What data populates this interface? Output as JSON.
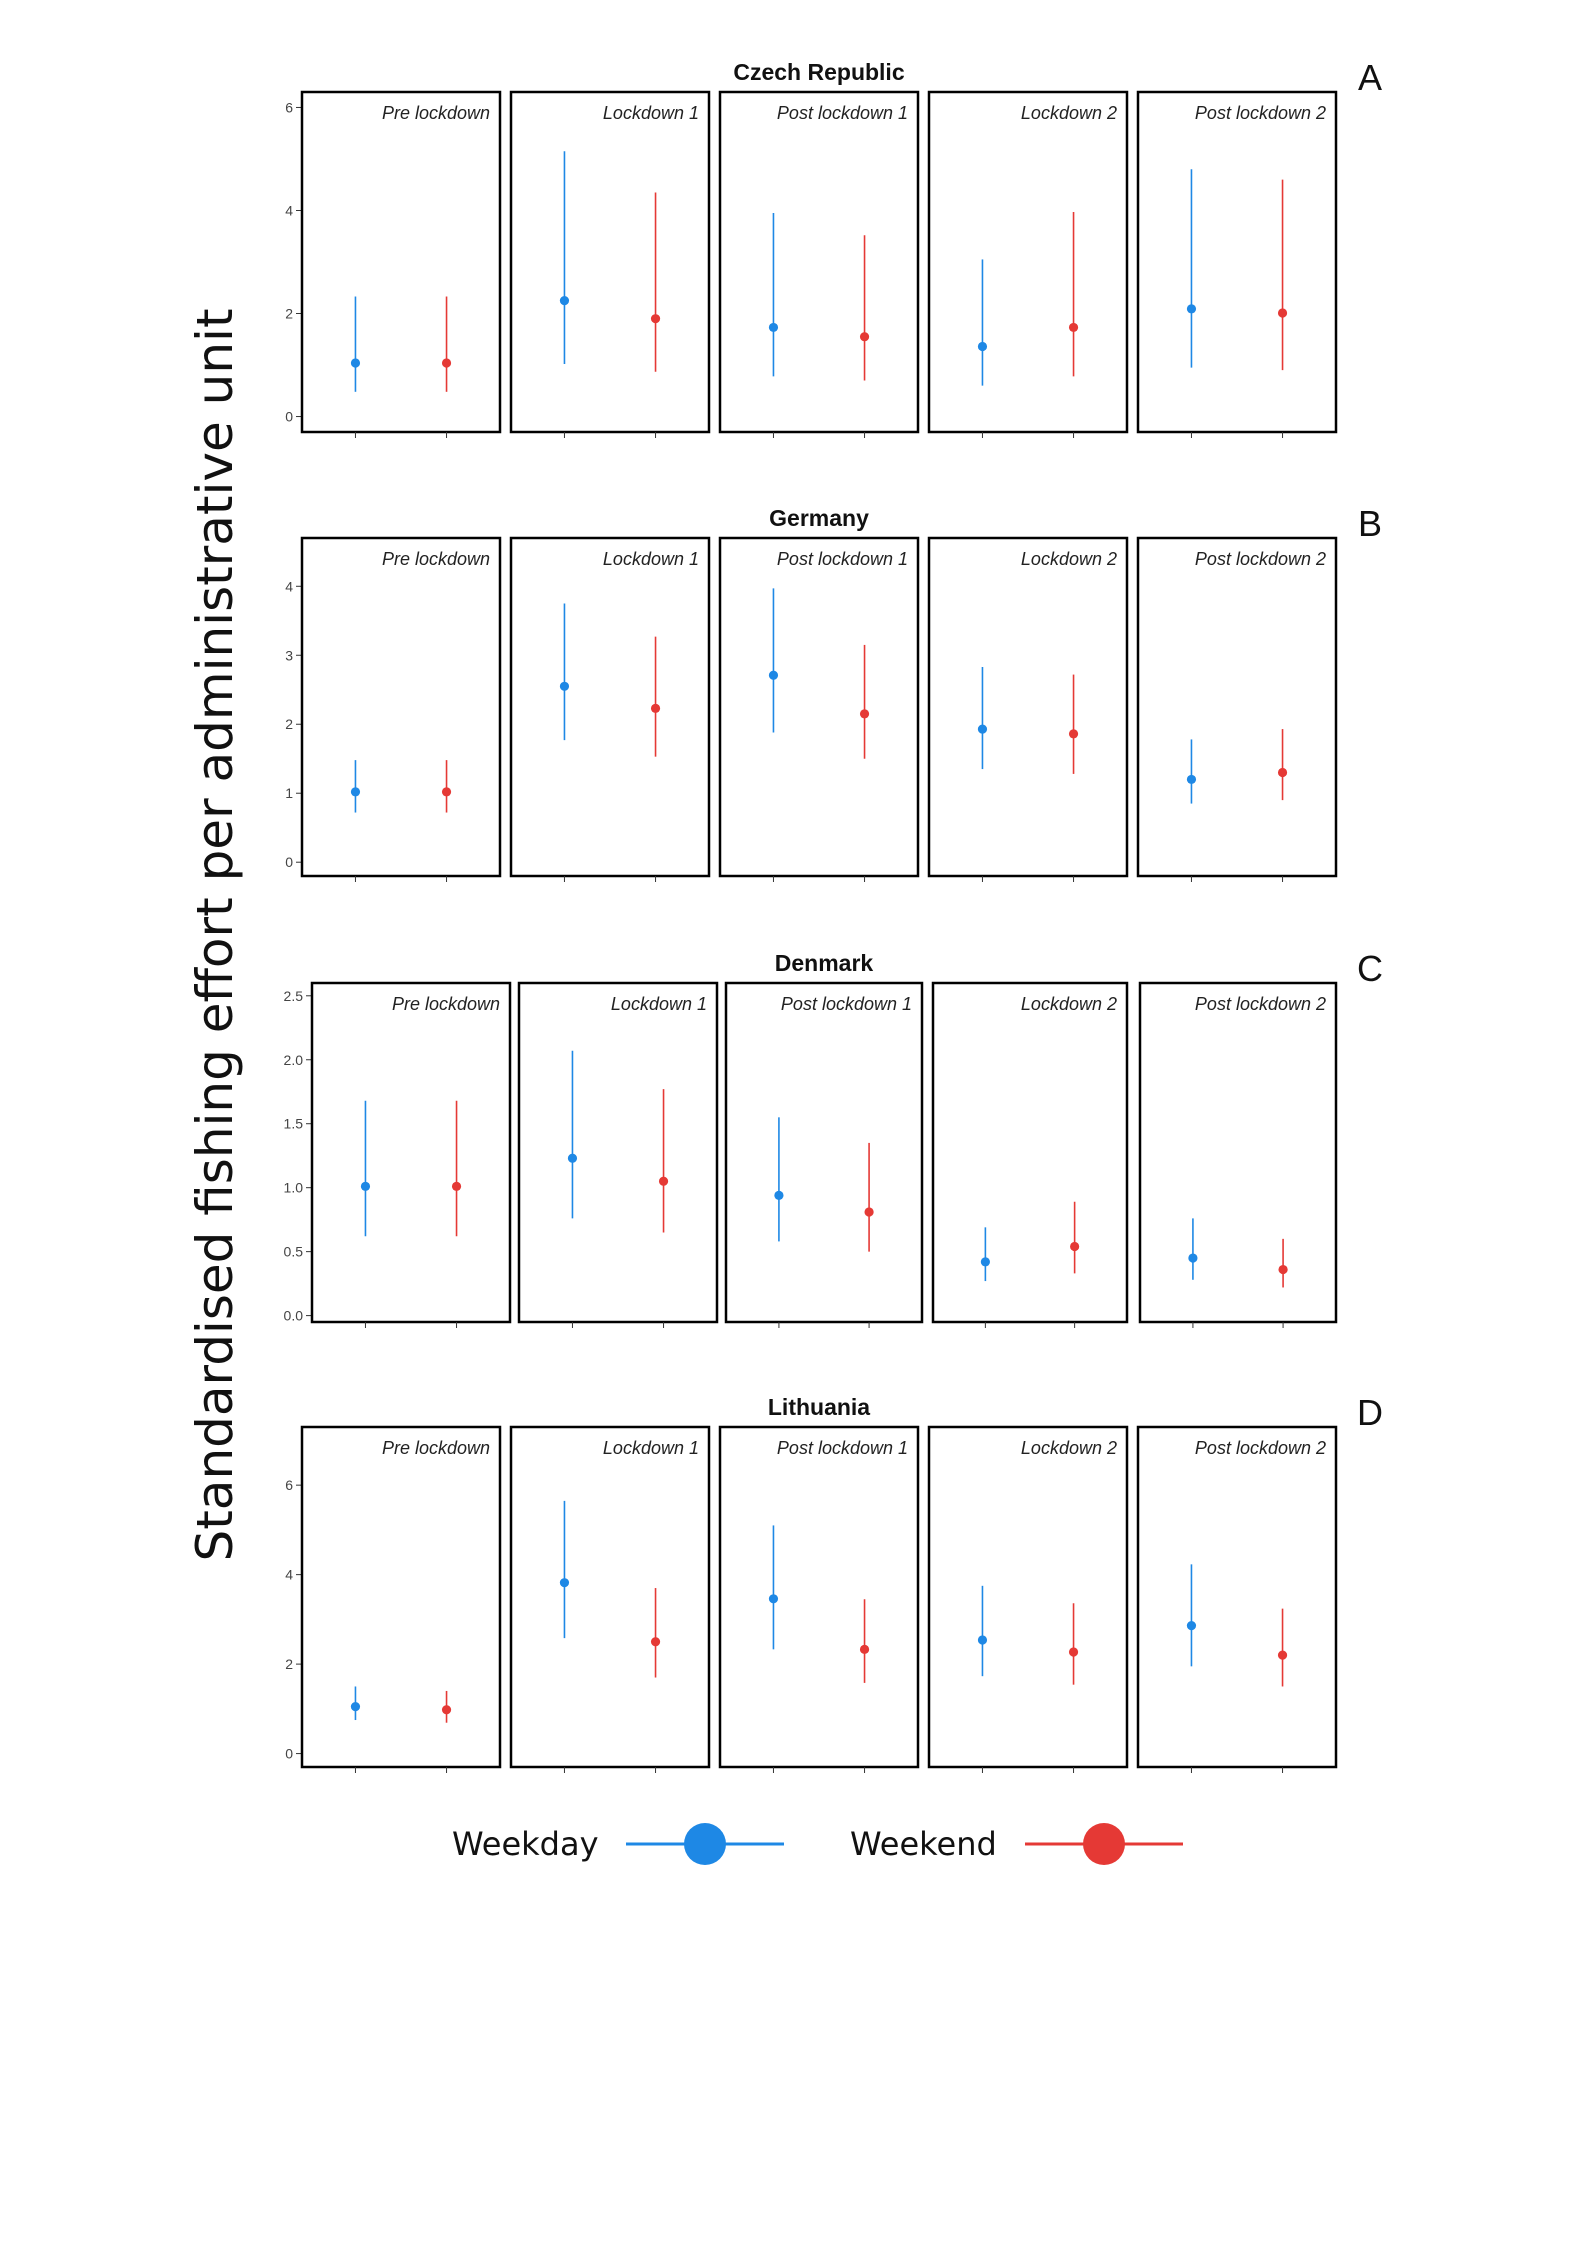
{
  "figure": {
    "ylabel": "Standardised fishing effort per administrative unit",
    "legend": [
      {
        "label": "Weekday",
        "color": "#1e88e5"
      },
      {
        "label": "Weekend",
        "color": "#e53935"
      }
    ]
  },
  "chart_data": [
    {
      "type": "errorbar",
      "title": "Czech Republic",
      "panel_label": "A",
      "facets": [
        "Pre lockdown",
        "Lockdown 1",
        "Post lockdown 1",
        "Lockdown 2",
        "Post lockdown 2"
      ],
      "ylim": [
        -0.3,
        6.3
      ],
      "yticks": [
        0,
        2,
        4,
        6
      ],
      "ytick_labels": [
        "0",
        "2",
        "4",
        "6"
      ],
      "series": [
        {
          "name": "Weekday",
          "color": "#1e88e5",
          "values": [
            1.04,
            2.25,
            1.73,
            1.36,
            2.09
          ],
          "lower": [
            0.48,
            1.02,
            0.78,
            0.6,
            0.95
          ],
          "upper": [
            2.33,
            5.15,
            3.95,
            3.05,
            4.8
          ]
        },
        {
          "name": "Weekend",
          "color": "#e53935",
          "values": [
            1.04,
            1.9,
            1.55,
            1.73,
            2.01
          ],
          "lower": [
            0.48,
            0.87,
            0.7,
            0.78,
            0.9
          ],
          "upper": [
            2.33,
            4.35,
            3.52,
            3.97,
            4.6
          ]
        }
      ]
    },
    {
      "type": "errorbar",
      "title": "Germany",
      "panel_label": "B",
      "facets": [
        "Pre lockdown",
        "Lockdown 1",
        "Post lockdown 1",
        "Lockdown 2",
        "Post lockdown 2"
      ],
      "ylim": [
        -0.2,
        4.7
      ],
      "yticks": [
        0,
        1,
        2,
        3,
        4
      ],
      "ytick_labels": [
        "0",
        "1",
        "2",
        "3",
        "4"
      ],
      "series": [
        {
          "name": "Weekday",
          "color": "#1e88e5",
          "values": [
            1.02,
            2.55,
            2.71,
            1.93,
            1.2
          ],
          "lower": [
            0.72,
            1.77,
            1.88,
            1.35,
            0.85
          ],
          "upper": [
            1.48,
            3.75,
            3.97,
            2.83,
            1.78
          ]
        },
        {
          "name": "Weekend",
          "color": "#e53935",
          "values": [
            1.02,
            2.23,
            2.15,
            1.86,
            1.3
          ],
          "lower": [
            0.72,
            1.53,
            1.5,
            1.28,
            0.9
          ],
          "upper": [
            1.48,
            3.27,
            3.15,
            2.72,
            1.93
          ]
        }
      ]
    },
    {
      "type": "errorbar",
      "title": "Denmark",
      "panel_label": "C",
      "facets": [
        "Pre lockdown",
        "Lockdown 1",
        "Post lockdown 1",
        "Lockdown 2",
        "Post lockdown 2"
      ],
      "ylim": [
        -0.05,
        2.6
      ],
      "yticks": [
        0,
        0.5,
        1.0,
        1.5,
        2.0,
        2.5
      ],
      "ytick_labels": [
        "0.0",
        "0.5",
        "1.0",
        "1.5",
        "2.0",
        "2.5"
      ],
      "series": [
        {
          "name": "Weekday",
          "color": "#1e88e5",
          "values": [
            1.01,
            1.23,
            0.94,
            0.42,
            0.45
          ],
          "lower": [
            0.62,
            0.76,
            0.58,
            0.27,
            0.28
          ],
          "upper": [
            1.68,
            2.07,
            1.55,
            0.69,
            0.76
          ]
        },
        {
          "name": "Weekend",
          "color": "#e53935",
          "values": [
            1.01,
            1.05,
            0.81,
            0.54,
            0.36
          ],
          "lower": [
            0.62,
            0.65,
            0.5,
            0.33,
            0.22
          ],
          "upper": [
            1.68,
            1.77,
            1.35,
            0.89,
            0.6
          ]
        }
      ]
    },
    {
      "type": "errorbar",
      "title": "Lithuania",
      "panel_label": "D",
      "facets": [
        "Pre lockdown",
        "Lockdown 1",
        "Post lockdown 1",
        "Lockdown 2",
        "Post lockdown 2"
      ],
      "ylim": [
        -0.3,
        7.3
      ],
      "yticks": [
        0,
        2,
        4,
        6
      ],
      "ytick_labels": [
        "0",
        "2",
        "4",
        "6"
      ],
      "series": [
        {
          "name": "Weekday",
          "color": "#1e88e5",
          "values": [
            1.05,
            3.82,
            3.46,
            2.54,
            2.86
          ],
          "lower": [
            0.75,
            2.58,
            2.33,
            1.73,
            1.95
          ],
          "upper": [
            1.5,
            5.65,
            5.1,
            3.75,
            4.23
          ]
        },
        {
          "name": "Weekend",
          "color": "#e53935",
          "values": [
            0.98,
            2.5,
            2.33,
            2.27,
            2.2
          ],
          "lower": [
            0.69,
            1.7,
            1.58,
            1.54,
            1.5
          ],
          "upper": [
            1.4,
            3.7,
            3.45,
            3.36,
            3.24
          ]
        }
      ]
    }
  ]
}
